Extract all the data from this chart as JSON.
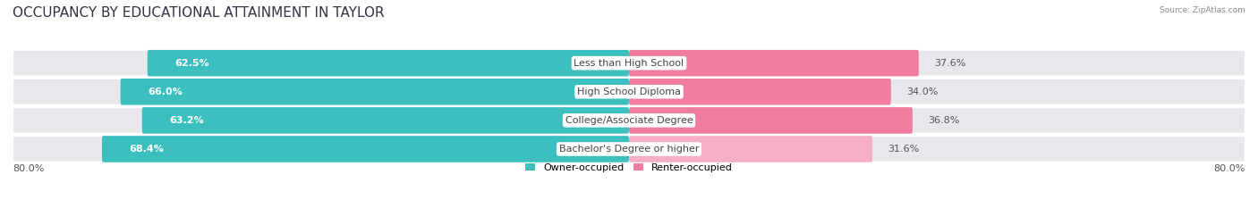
{
  "title": "OCCUPANCY BY EDUCATIONAL ATTAINMENT IN TAYLOR",
  "source": "Source: ZipAtlas.com",
  "categories": [
    "Less than High School",
    "High School Diploma",
    "College/Associate Degree",
    "Bachelor's Degree or higher"
  ],
  "owner_pct": [
    62.5,
    66.0,
    63.2,
    68.4
  ],
  "renter_pct": [
    37.6,
    34.0,
    36.8,
    31.6
  ],
  "owner_color": "#3bbfbf",
  "renter_colors": [
    "#f07ca0",
    "#f07ca0",
    "#f07ca0",
    "#f5aec8"
  ],
  "bg_color": "#ffffff",
  "bar_bg_color": "#e8e8ec",
  "x_axis_left_label": "80.0%",
  "x_axis_right_label": "80.0%",
  "legend_owner": "Owner-occupied",
  "legend_renter": "Renter-occupied",
  "legend_owner_color": "#3bbfbf",
  "legend_renter_color": "#f07ca0",
  "title_fontsize": 11,
  "label_fontsize": 8,
  "cat_fontsize": 8,
  "bar_height": 0.62,
  "total_width": 80.0
}
